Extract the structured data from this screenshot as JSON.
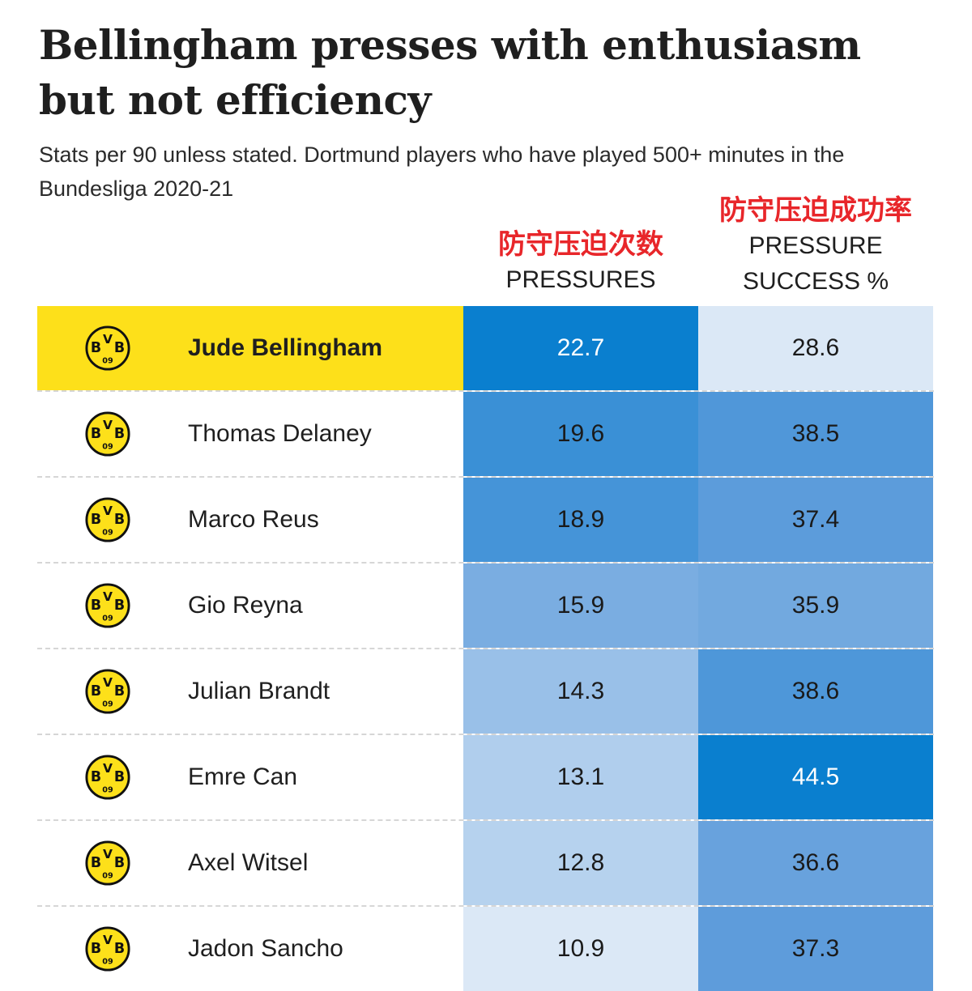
{
  "title": "Bellingham presses with enthusiasm but not efficiency",
  "subtitle": "Stats per 90 unless stated. Dortmund players who have played 500+ minutes in the Bundesliga 2020-21",
  "columns": {
    "pressures": {
      "cn": "防守压迫次数",
      "en": "PRESSURES"
    },
    "success": {
      "cn": "防守压迫成功率",
      "en1": "PRESSURE",
      "en2": "SUCCESS %"
    }
  },
  "logo": {
    "top": "V",
    "left": "B",
    "right": "B",
    "bottom": "09",
    "colors": {
      "fill": "#fde01a",
      "stroke": "#111111"
    }
  },
  "colors": {
    "highlight": "#fde01a",
    "scale_low": "#dbe8f6",
    "scale_high": "#0a7fcf",
    "text_dark": "#1a1a1a",
    "text_light": "#ffffff"
  },
  "chart_data": {
    "type": "table",
    "highlighted_player": "Jude Bellingham",
    "columns": [
      "PRESSURES",
      "PRESSURE SUCCESS %"
    ],
    "rows": [
      {
        "player": "Jude Bellingham",
        "pressures": 22.7,
        "success": 28.6
      },
      {
        "player": "Thomas Delaney",
        "pressures": 19.6,
        "success": 38.5
      },
      {
        "player": "Marco Reus",
        "pressures": 18.9,
        "success": 37.4
      },
      {
        "player": "Gio Reyna",
        "pressures": 15.9,
        "success": 35.9
      },
      {
        "player": "Julian Brandt",
        "pressures": 14.3,
        "success": 38.6
      },
      {
        "player": "Emre Can",
        "pressures": 13.1,
        "success": 44.5
      },
      {
        "player": "Axel Witsel",
        "pressures": 12.8,
        "success": 36.6
      },
      {
        "player": "Jadon Sancho",
        "pressures": 10.9,
        "success": 37.3
      }
    ]
  }
}
